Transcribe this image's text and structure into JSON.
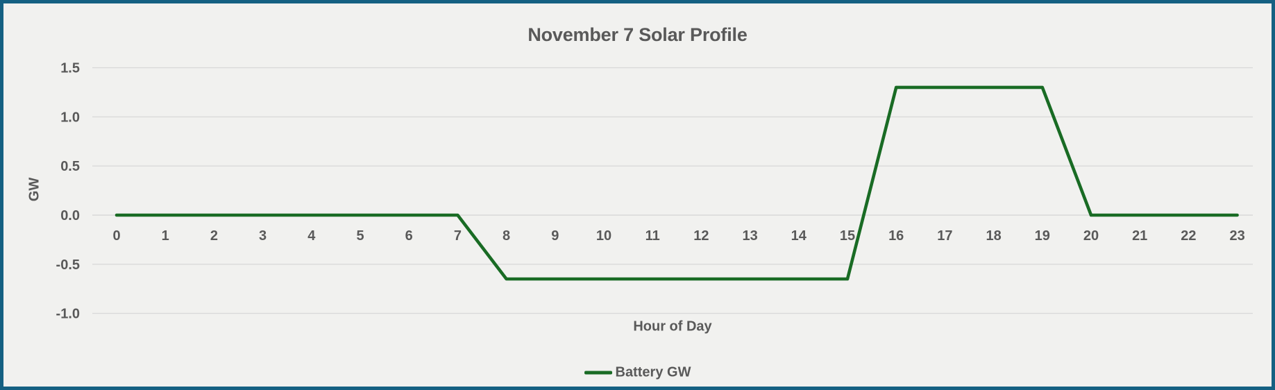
{
  "chart_data": {
    "type": "line",
    "title": "November 7 Solar Profile",
    "xlabel": "Hour of Day",
    "ylabel": "GW",
    "categories": [
      "0",
      "1",
      "2",
      "3",
      "4",
      "5",
      "6",
      "7",
      "8",
      "9",
      "10",
      "11",
      "12",
      "13",
      "14",
      "15",
      "16",
      "17",
      "18",
      "19",
      "20",
      "21",
      "22",
      "23"
    ],
    "series": [
      {
        "name": "Battery GW",
        "color": "#196B24",
        "values": [
          0,
          0,
          0,
          0,
          0,
          0,
          0,
          0,
          -0.65,
          -0.65,
          -0.65,
          -0.65,
          -0.65,
          -0.65,
          -0.65,
          -0.65,
          1.3,
          1.3,
          1.3,
          1.3,
          0,
          0,
          0,
          0
        ]
      }
    ],
    "ylim": [
      -1.0,
      1.5
    ],
    "yticks": [
      1.5,
      1.0,
      0.5,
      0.0,
      -0.5,
      -1.0
    ],
    "ytick_labels": [
      "1.5",
      "1.0",
      "0.5",
      "0.0",
      "-0.5",
      "-1.0"
    ],
    "grid": true,
    "legend_position": "bottom"
  },
  "colors": {
    "frame_border": "#156082",
    "background": "#f1f1ef",
    "gridline": "#d9d9d9",
    "text": "#595959",
    "series_line": "#196B24"
  }
}
